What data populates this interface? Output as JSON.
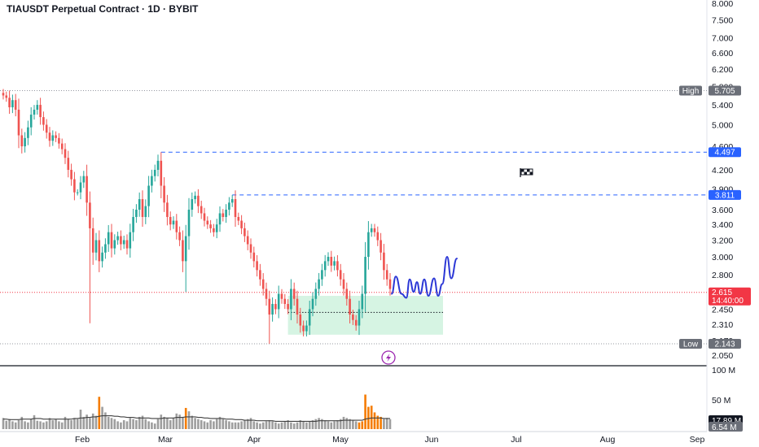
{
  "chart_data": {
    "type": "candlestick",
    "title": "TIAUSDT Perpetual Contract · 1D · BYBIT",
    "colors": {
      "up": "#26a69a",
      "down": "#ef5350",
      "vol_up": "#9e9e9e",
      "vol_down": "#9e9e9e",
      "vol_spike": "#f57c00",
      "vol_ma": "#424242",
      "level_line": "#2962ff",
      "projection": "#2b37d6",
      "zone": "#c8f0d9",
      "last_price": "#f23645",
      "high_low_tag": "#6b6f78"
    },
    "y_axis": {
      "scale": "log",
      "range": [
        2.0,
        8.0
      ],
      "ticks": [
        "8.000",
        "7.500",
        "7.000",
        "6.600",
        "6.200",
        "5.800",
        "5.400",
        "5.000",
        "4.600",
        "4.200",
        "3.900",
        "3.600",
        "3.400",
        "3.200",
        "3.000",
        "2.800",
        "2.620",
        "2.450",
        "2.310",
        "2.170",
        "2.050"
      ]
    },
    "x_axis": {
      "ticks": [
        "Feb",
        "Mar",
        "Apr",
        "May",
        "Jun",
        "Jul",
        "Aug",
        "Sep"
      ]
    },
    "volume_axis": {
      "ticks": [
        "100 M",
        "50 M"
      ]
    },
    "tags": {
      "high_label": "High",
      "high_value": "5.705",
      "low_label": "Low",
      "low_value": "2.143",
      "level_1": "4.497",
      "level_2": "3.811",
      "last_price": "2.615",
      "countdown": "14:40:00",
      "vol_value_1": "17.89 M",
      "vol_value_2": "6.54 M"
    },
    "levels": [
      4.497,
      3.811
    ],
    "high": 5.705,
    "low": 2.143,
    "last": 2.615,
    "zone": {
      "top": 2.58,
      "bottom": 2.22,
      "mid": 2.42
    },
    "close_path": [
      5.6,
      5.55,
      5.35,
      5.5,
      5.3,
      4.8,
      4.6,
      4.75,
      4.95,
      5.2,
      5.3,
      5.4,
      5.15,
      5.0,
      4.85,
      4.7,
      4.8,
      4.75,
      4.65,
      4.55,
      4.4,
      4.2,
      4.05,
      3.85,
      3.85,
      4.0,
      4.1,
      3.7,
      3.35,
      3.05,
      3.2,
      2.95,
      3.05,
      3.15,
      3.3,
      3.1,
      3.2,
      3.25,
      3.15,
      3.2,
      3.1,
      3.3,
      3.5,
      3.6,
      3.75,
      3.5,
      3.65,
      3.95,
      4.1,
      4.2,
      4.35,
      3.95,
      3.7,
      3.5,
      3.4,
      3.45,
      3.3,
      3.2,
      2.95,
      3.25,
      3.6,
      3.75,
      3.8,
      3.65,
      3.55,
      3.45,
      3.4,
      3.35,
      3.3,
      3.4,
      3.55,
      3.5,
      3.6,
      3.7,
      3.75,
      3.5,
      3.45,
      3.35,
      3.25,
      3.15,
      3.05,
      2.95,
      2.85,
      2.75,
      2.65,
      2.55,
      2.4,
      2.5,
      2.45,
      2.6,
      2.55,
      2.5,
      2.45,
      2.65,
      2.55,
      2.4,
      2.3,
      2.25,
      2.3,
      2.45,
      2.55,
      2.65,
      2.75,
      2.85,
      2.95,
      3.0,
      2.9,
      2.95,
      2.85,
      2.75,
      2.65,
      2.55,
      2.4,
      2.35,
      2.3,
      2.45,
      2.6,
      3.0,
      3.3,
      3.35,
      3.3,
      3.2,
      3.05,
      2.85,
      2.75,
      2.65
    ],
    "volumes": [
      20,
      15,
      18,
      14,
      12,
      16,
      22,
      14,
      12,
      18,
      25,
      15,
      14,
      12,
      14,
      20,
      16,
      18,
      14,
      12,
      22,
      18,
      16,
      20,
      18,
      35,
      22,
      26,
      20,
      28,
      24,
      58,
      40,
      30,
      22,
      20,
      18,
      14,
      12,
      16,
      14,
      20,
      18,
      16,
      22,
      24,
      18,
      14,
      12,
      10,
      18,
      26,
      22,
      20,
      16,
      20,
      28,
      26,
      22,
      38,
      32,
      24,
      20,
      18,
      16,
      14,
      12,
      16,
      14,
      18,
      22,
      18,
      16,
      14,
      12,
      12,
      12,
      14,
      16,
      18,
      20,
      14,
      12,
      10,
      12,
      14,
      16,
      14,
      12,
      10,
      12,
      14,
      16,
      12,
      10,
      12,
      16,
      14,
      12,
      14,
      16,
      18,
      20,
      18,
      16,
      14,
      12,
      14,
      16,
      18,
      22,
      20,
      18,
      16,
      14,
      12,
      14,
      62,
      40,
      42,
      30,
      24,
      22,
      18,
      20,
      17.89
    ],
    "volume_ma": [
      18,
      18,
      17,
      17,
      17,
      17,
      18,
      18,
      18,
      18,
      19,
      19,
      19,
      18,
      18,
      18,
      18,
      18,
      18,
      18,
      18,
      18,
      18,
      19,
      19,
      20,
      20,
      21,
      21,
      22,
      22,
      23,
      24,
      24,
      24,
      24,
      23,
      23,
      22,
      22,
      21,
      21,
      21,
      20,
      20,
      20,
      20,
      20,
      19,
      19,
      19,
      19,
      20,
      20,
      20,
      20,
      21,
      21,
      21,
      22,
      22,
      22,
      22,
      21,
      21,
      20,
      20,
      19,
      19,
      19,
      19,
      19,
      18,
      18,
      18,
      17,
      17,
      17,
      16,
      16,
      16,
      16,
      15,
      15,
      15,
      15,
      15,
      15,
      14,
      14,
      14,
      14,
      14,
      14,
      14,
      14,
      14,
      14,
      14,
      14,
      14,
      14,
      15,
      15,
      15,
      15,
      15,
      15,
      15,
      15,
      16,
      16,
      16,
      16,
      16,
      16,
      16,
      18,
      19,
      20,
      20,
      20,
      20,
      19,
      19,
      19
    ],
    "spike_indices": [
      31,
      59,
      115,
      116,
      117,
      118,
      119,
      120,
      121,
      122
    ]
  }
}
